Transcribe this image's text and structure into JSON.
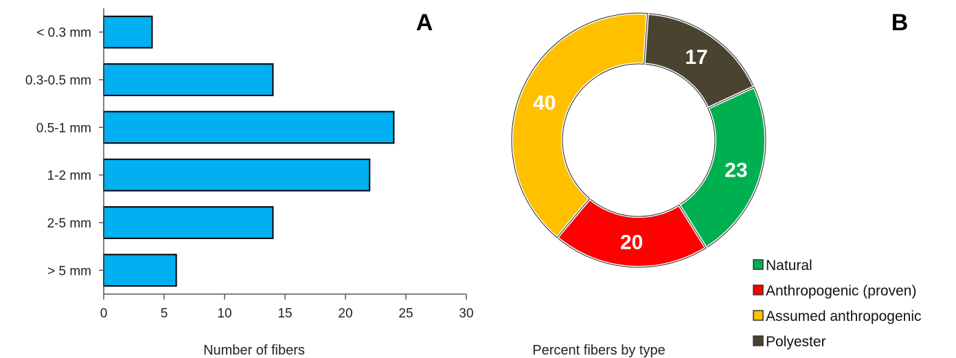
{
  "chart_data": [
    {
      "type": "bar",
      "orientation": "horizontal",
      "panel_label": "A",
      "categories": [
        "< 0.3 mm",
        "0.3-0.5 mm",
        "0.5-1 mm",
        "1-2 mm",
        "2-5 mm",
        "> 5 mm"
      ],
      "values": [
        4,
        14,
        24,
        22,
        14,
        6
      ],
      "xlabel": "Number of fibers",
      "ylabel": "",
      "xlim": [
        0,
        30
      ],
      "xticks": [
        "0",
        "5",
        "10",
        "15",
        "20",
        "25",
        "30"
      ],
      "xtick_values": [
        0,
        5,
        10,
        15,
        20,
        25,
        30
      ],
      "grid": false,
      "colors": {
        "bar_fill": "#00B0F0",
        "bar_stroke": "#000000"
      }
    },
    {
      "type": "pie",
      "style": "donut",
      "panel_label": "B",
      "categories": [
        "Polyester",
        "Natural",
        "Anthropogenic (proven)",
        "Assumed anthropogenic"
      ],
      "values": [
        17,
        23,
        20,
        40
      ],
      "value_labels": [
        "17",
        "23",
        "20",
        "40"
      ],
      "xlabel": "Percent fibers by type",
      "legend": {
        "placement": "bottom-right",
        "entries": [
          "Natural",
          "Anthropogenic (proven)",
          "Assumed anthropogenic",
          "Polyester"
        ]
      },
      "colors": {
        "Polyester": "#4A4330",
        "Natural": "#00B050",
        "Anthropogenic (proven)": "#FF0000",
        "Assumed anthropogenic": "#FFC000"
      }
    }
  ]
}
